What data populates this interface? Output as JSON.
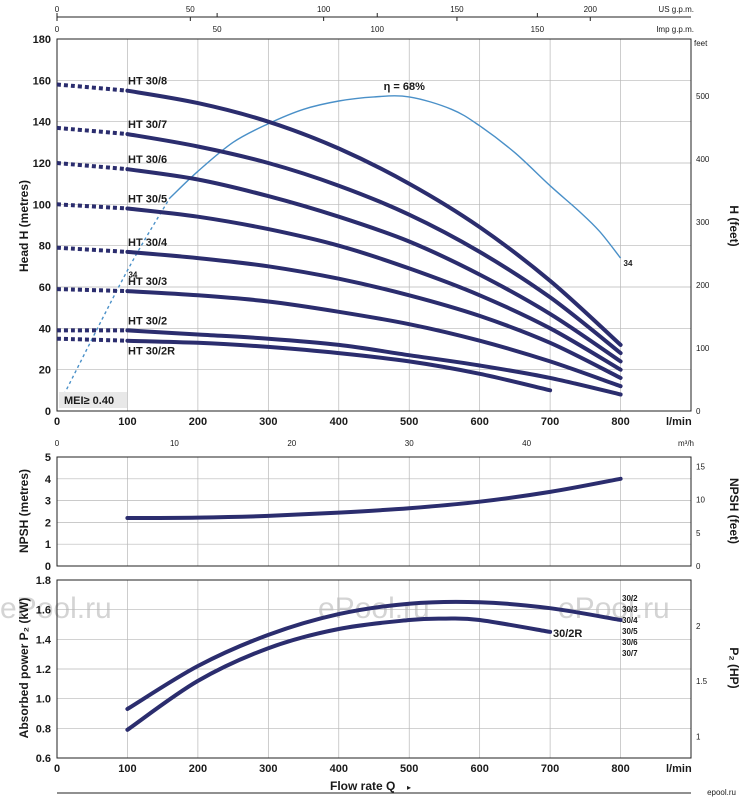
{
  "chart_data": [
    {
      "type": "line",
      "panel": "head",
      "ylabel": "Head H (metres)",
      "ylabel_right": "H (feet)",
      "xlabel_unit": "l/min",
      "xlim": [
        0,
        900
      ],
      "ylim": [
        0,
        180
      ],
      "x_ticks": [
        0,
        100,
        200,
        300,
        400,
        500,
        600,
        700,
        800
      ],
      "y_ticks": [
        0,
        20,
        40,
        60,
        80,
        100,
        120,
        140,
        160,
        180
      ],
      "right_unit": "feet",
      "right_ticks": [
        0,
        100,
        200,
        300,
        400,
        500
      ],
      "top_axes": [
        {
          "unit": "US g.p.m.",
          "ticks": [
            0,
            50,
            100,
            150,
            200
          ],
          "factor": 3.785
        },
        {
          "unit": "Imp g.p.m.",
          "ticks": [
            0,
            50,
            100,
            150
          ],
          "factor": 4.546
        }
      ],
      "bottom_secondary": {
        "unit": "m³/h",
        "ticks": [
          0,
          10,
          20,
          30,
          40
        ],
        "factor": 16.667
      },
      "series": [
        {
          "name": "HT 30/8",
          "x": [
            0,
            100,
            200,
            300,
            400,
            500,
            600,
            700,
            800
          ],
          "y": [
            158,
            155,
            149,
            140,
            127,
            110,
            89,
            63,
            32
          ],
          "dashed_until": 100
        },
        {
          "name": "HT 30/7",
          "x": [
            0,
            100,
            200,
            300,
            400,
            500,
            600,
            700,
            800
          ],
          "y": [
            137,
            134,
            128,
            120,
            109,
            95,
            77,
            55,
            28
          ],
          "dashed_until": 100
        },
        {
          "name": "HT 30/6",
          "x": [
            0,
            100,
            200,
            300,
            400,
            500,
            600,
            700,
            800
          ],
          "y": [
            120,
            117,
            112,
            104,
            94,
            82,
            66,
            47,
            24
          ],
          "dashed_until": 100
        },
        {
          "name": "HT 30/5",
          "x": [
            0,
            100,
            200,
            300,
            400,
            500,
            600,
            700,
            800
          ],
          "y": [
            100,
            98,
            94,
            88,
            80,
            69,
            56,
            40,
            20
          ],
          "dashed_until": 100
        },
        {
          "name": "HT 30/4",
          "x": [
            0,
            100,
            200,
            300,
            400,
            500,
            600,
            700,
            800
          ],
          "y": [
            79,
            77,
            74,
            70,
            64,
            56,
            46,
            33,
            16
          ],
          "dashed_until": 100
        },
        {
          "name": "HT 30/3",
          "x": [
            0,
            100,
            200,
            300,
            400,
            500,
            600,
            700,
            800
          ],
          "y": [
            59,
            58,
            56,
            53,
            48,
            42,
            34,
            24,
            12
          ],
          "dashed_until": 100
        },
        {
          "name": "HT 30/2",
          "x": [
            0,
            100,
            200,
            300,
            400,
            500,
            600,
            700,
            800
          ],
          "y": [
            39,
            39,
            37,
            35,
            32,
            27,
            22,
            16,
            8
          ],
          "dashed_until": 100
        },
        {
          "name": "HT 30/2R",
          "x": [
            0,
            100,
            200,
            300,
            400,
            500,
            600,
            700
          ],
          "y": [
            35,
            34,
            33,
            31,
            28,
            24,
            18,
            10
          ],
          "dashed_until": 100
        }
      ],
      "efficiency_curve": {
        "x": [
          10,
          100,
          160,
          200,
          250,
          300,
          350,
          400,
          450,
          500,
          560,
          600,
          650,
          700,
          740,
          770,
          800
        ],
        "y": [
          8,
          68,
          103,
          116,
          130,
          139,
          146,
          150,
          152,
          152,
          146,
          138,
          125,
          109,
          97,
          87,
          74
        ],
        "dashed_until": 160,
        "peak_label": "η = 68%",
        "peak_x": 500,
        "end_labels": [
          "34",
          "34"
        ],
        "mei_label": "MEI≥ 0.40"
      }
    },
    {
      "type": "line",
      "panel": "npsh",
      "ylabel": "NPSH (metres)",
      "ylabel_right": "NPSH (feet)",
      "xlim": [
        0,
        900
      ],
      "ylim": [
        0,
        5
      ],
      "y_ticks": [
        0,
        1,
        2,
        3,
        4,
        5
      ],
      "right_ticks": [
        0,
        5,
        10,
        15
      ],
      "series": [
        {
          "x": [
            100,
            200,
            300,
            400,
            500,
            600,
            700,
            800
          ],
          "y": [
            2.2,
            2.22,
            2.3,
            2.45,
            2.65,
            2.95,
            3.4,
            4.0
          ]
        }
      ]
    },
    {
      "type": "line",
      "panel": "power",
      "ylabel": "Absorbed power P₂ (kW)",
      "ylabel_right": "P₂ (HP)",
      "xlabel": "Flow rate Q",
      "xlabel_unit": "l/min",
      "xlim": [
        0,
        900
      ],
      "ylim": [
        0.6,
        1.8
      ],
      "x_ticks": [
        0,
        100,
        200,
        300,
        400,
        500,
        600,
        700,
        800
      ],
      "y_ticks": [
        0.6,
        0.8,
        1.0,
        1.2,
        1.4,
        1.6,
        1.8
      ],
      "right_ticks": [
        1,
        1.5,
        2
      ],
      "series": [
        {
          "labels": [
            "30/2",
            "30/3",
            "30/4",
            "30/5",
            "30/6",
            "30/7"
          ],
          "x": [
            100,
            200,
            300,
            400,
            500,
            600,
            700,
            800
          ],
          "y": [
            0.93,
            1.22,
            1.43,
            1.57,
            1.64,
            1.65,
            1.61,
            1.53
          ]
        },
        {
          "name": "30/2R",
          "x": [
            100,
            200,
            300,
            400,
            500,
            550,
            600,
            700
          ],
          "y": [
            0.79,
            1.12,
            1.34,
            1.47,
            1.53,
            1.54,
            1.53,
            1.45
          ]
        }
      ]
    }
  ],
  "watermarks": [
    "ePool.ru",
    "ePool.ru",
    "ePool.ru"
  ],
  "footer_brand": "epool.ru"
}
